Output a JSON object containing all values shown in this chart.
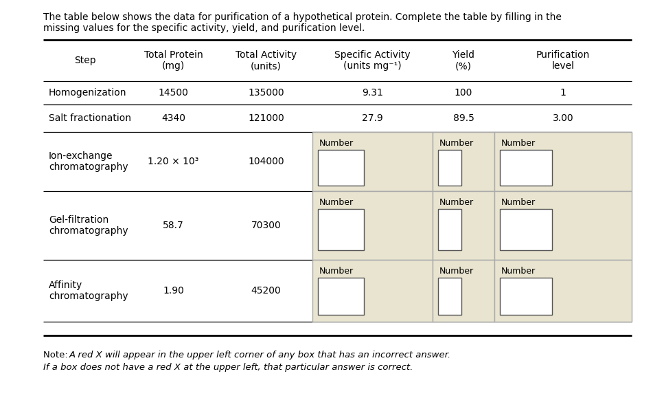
{
  "title_text": "The table below shows the data for purification of a hypothetical protein. Complete the table by filling in the\nmissing values for the specific activity, yield, and purification level.",
  "col_headers": [
    "Step",
    "Total Protein\n(mg)",
    "Total Activity\n(units)",
    "Specific Activity\n(units mg⁻¹)",
    "Yield\n(%)",
    "Purification\nlevel"
  ],
  "rows": [
    {
      "step": "Homogenization",
      "protein": "14500",
      "activity": "135000",
      "specific_activity": "9.31",
      "yield_val": "100",
      "purification": "1",
      "has_input_boxes": false
    },
    {
      "step": "Salt fractionation",
      "protein": "4340",
      "activity": "121000",
      "specific_activity": "27.9",
      "yield_val": "89.5",
      "purification": "3.00",
      "has_input_boxes": false
    },
    {
      "step": "Ion-exchange\nchromatography",
      "protein": "1.20 × 10³",
      "activity": "104000",
      "specific_activity": "",
      "yield_val": "",
      "purification": "",
      "has_input_boxes": true
    },
    {
      "step": "Gel-filtration\nchromatography",
      "protein": "58.7",
      "activity": "70300",
      "specific_activity": "",
      "yield_val": "",
      "purification": "",
      "has_input_boxes": true
    },
    {
      "step": "Affinity\nchromatography",
      "protein": "1.90",
      "activity": "45200",
      "specific_activity": "",
      "yield_val": "",
      "purification": "",
      "has_input_boxes": true
    }
  ],
  "note_prefix": "Note: ",
  "note_line1_italic": "A red X will appear in the upper left corner of any box that has an incorrect answer.",
  "note_line2_italic": "If a box does not have a red X at the upper left, that particular answer is correct.",
  "background_color": "#ffffff",
  "input_bg": "#e8e4d0",
  "input_border": "#aaaaaa",
  "inner_box_bg": "#ffffff",
  "inner_box_border": "#555555",
  "table_line_color": "#000000",
  "font_size_title": 10.0,
  "font_size_header": 10.0,
  "font_size_cell": 10.0,
  "font_size_note": 9.5,
  "font_size_number_label": 9.0
}
